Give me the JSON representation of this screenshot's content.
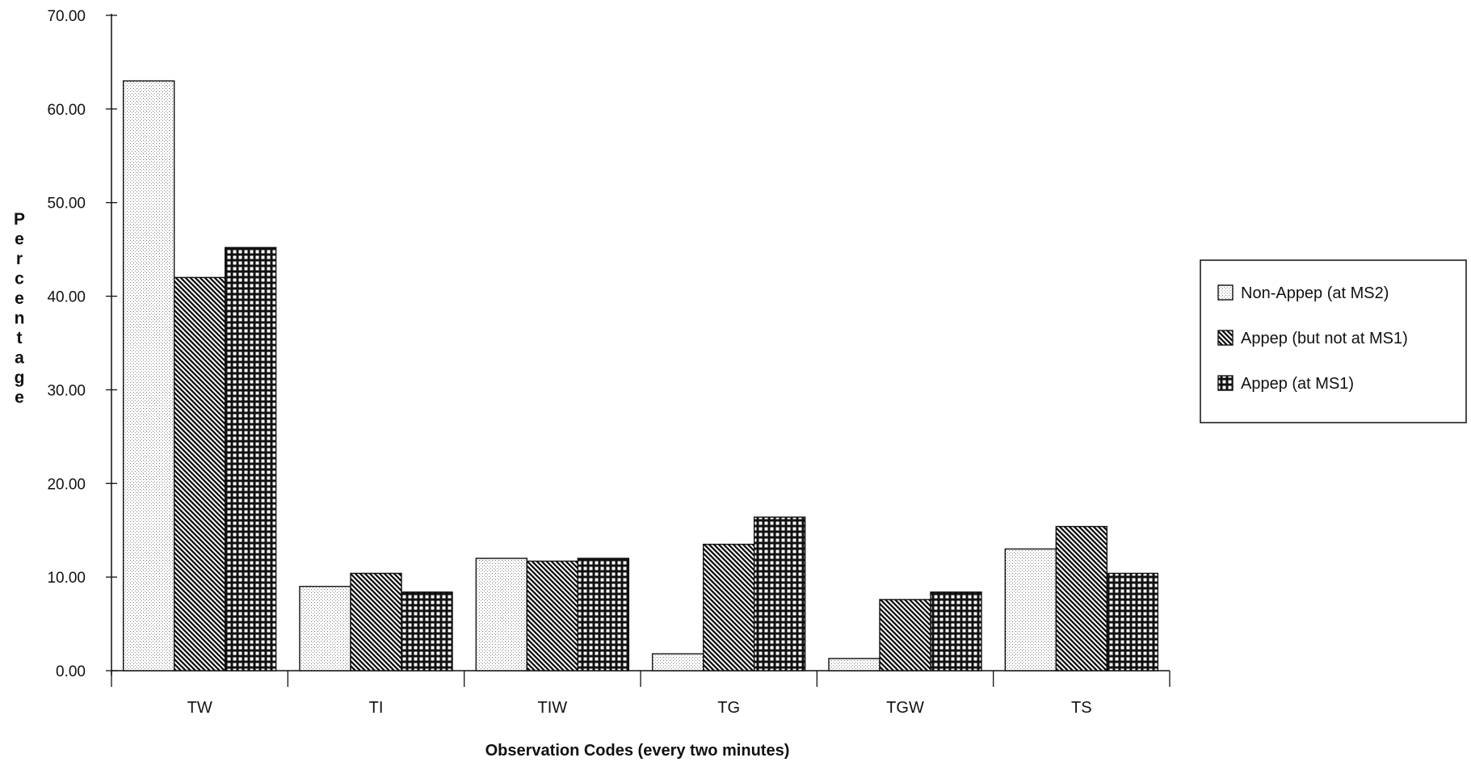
{
  "chart_data": {
    "type": "bar",
    "title": "",
    "xlabel": "Observation Codes (every two minutes)",
    "ylabel": "Percentage",
    "ylim": [
      0,
      70
    ],
    "yticks": [
      "0.00",
      "10.00",
      "20.00",
      "30.00",
      "40.00",
      "50.00",
      "60.00",
      "70.00"
    ],
    "categories": [
      "TW",
      "TI",
      "TIW",
      "TG",
      "TGW",
      "TS"
    ],
    "series": [
      {
        "name": "Non-Appep (at MS2)",
        "pattern": "dots",
        "values": [
          63.0,
          9.0,
          12.0,
          1.8,
          1.3,
          13.0
        ]
      },
      {
        "name": "Appep (but not at MS1)",
        "pattern": "diagonal-hatch",
        "values": [
          42.0,
          10.4,
          11.7,
          13.5,
          7.6,
          15.4
        ]
      },
      {
        "name": "Appep (at MS1)",
        "pattern": "grid-hatch",
        "values": [
          45.2,
          8.4,
          12.0,
          16.4,
          8.4,
          10.4
        ]
      }
    ],
    "grid": false,
    "legend_position": "right"
  },
  "colors": {
    "ink": "#111111",
    "background": "#ffffff"
  }
}
